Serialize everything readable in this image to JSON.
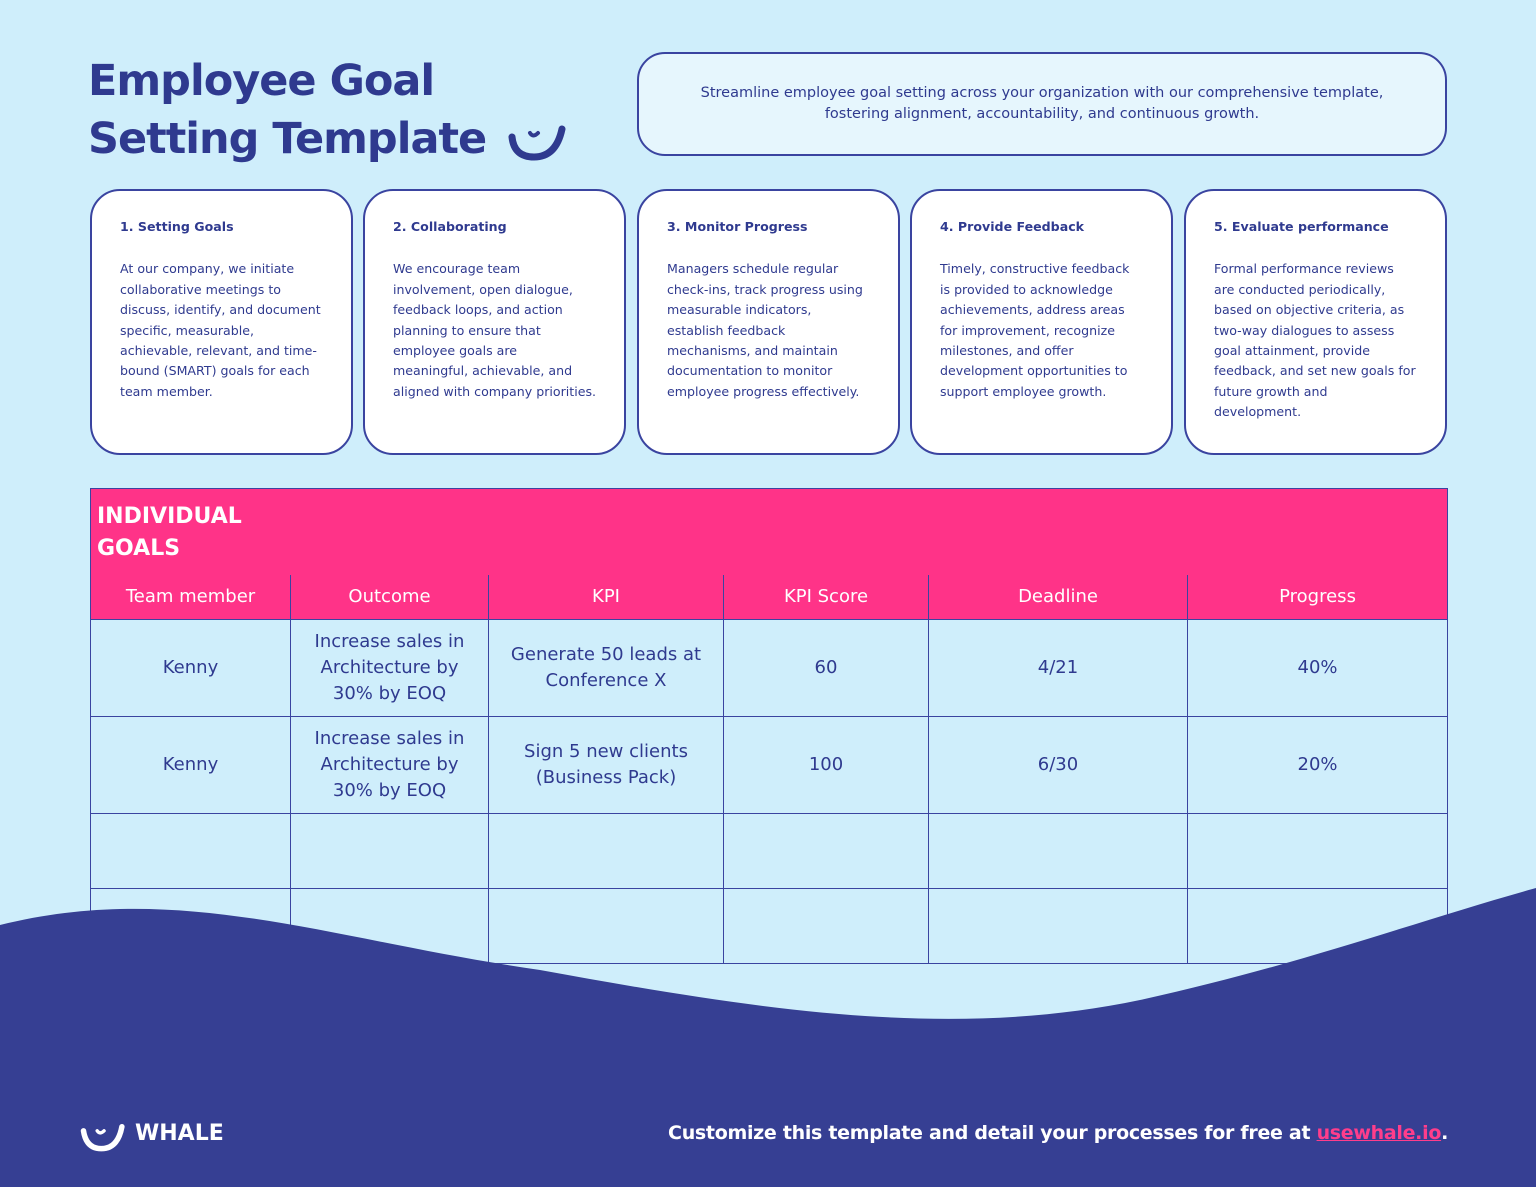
{
  "header": {
    "title": [
      "Employee Goal",
      "Setting Template"
    ],
    "intro": "Streamline employee goal setting across your organization with our comprehensive template, fostering alignment, accountability, and continuous growth."
  },
  "steps": [
    {
      "title": "1. Setting Goals",
      "text": "At our company, we initiate collaborative meetings to discuss, identify, and document specific, measurable, achievable, relevant, and time-bound (SMART) goals for each team member."
    },
    {
      "title": "2. Collaborating",
      "text": "We encourage team involvement, open dialogue, feedback loops, and action planning to ensure that employee goals are meaningful, achievable, and aligned with company priorities."
    },
    {
      "title": "3. Monitor Progress",
      "text": "Managers schedule regular check-ins, track progress using measurable indicators, establish feedback mechanisms, and maintain documentation to monitor employee progress effectively."
    },
    {
      "title": "4. Provide Feedback",
      "text": "Timely, constructive feedback is provided to acknowledge achievements, address areas for improvement, recognize milestones, and offer development opportunities to support employee growth."
    },
    {
      "title": "5. Evaluate performance",
      "text": "Formal performance reviews are conducted periodically, based on objective criteria, as two-way dialogues to assess goal attainment, provide feedback, and set new goals for future growth and development."
    }
  ],
  "table": {
    "title": [
      "INDIVIDUAL",
      "GOALS"
    ],
    "columns": [
      "Team member",
      "Outcome",
      "KPI",
      "KPI Score",
      "Deadline",
      "Progress"
    ],
    "rows": [
      [
        "Kenny",
        "Increase sales in Architecture by 30% by EOQ",
        "Generate 50 leads at Conference X",
        "60",
        "4/21",
        "40%"
      ],
      [
        "Kenny",
        "Increase sales in Architecture by 30% by EOQ",
        "Sign 5 new clients (Business Pack)",
        "100",
        "6/30",
        "20%"
      ]
    ]
  },
  "footer": {
    "brand": "WHALE",
    "cta": "Customize this template and detail your processes for free at ",
    "link": "usewhale.io",
    "end": "."
  }
}
